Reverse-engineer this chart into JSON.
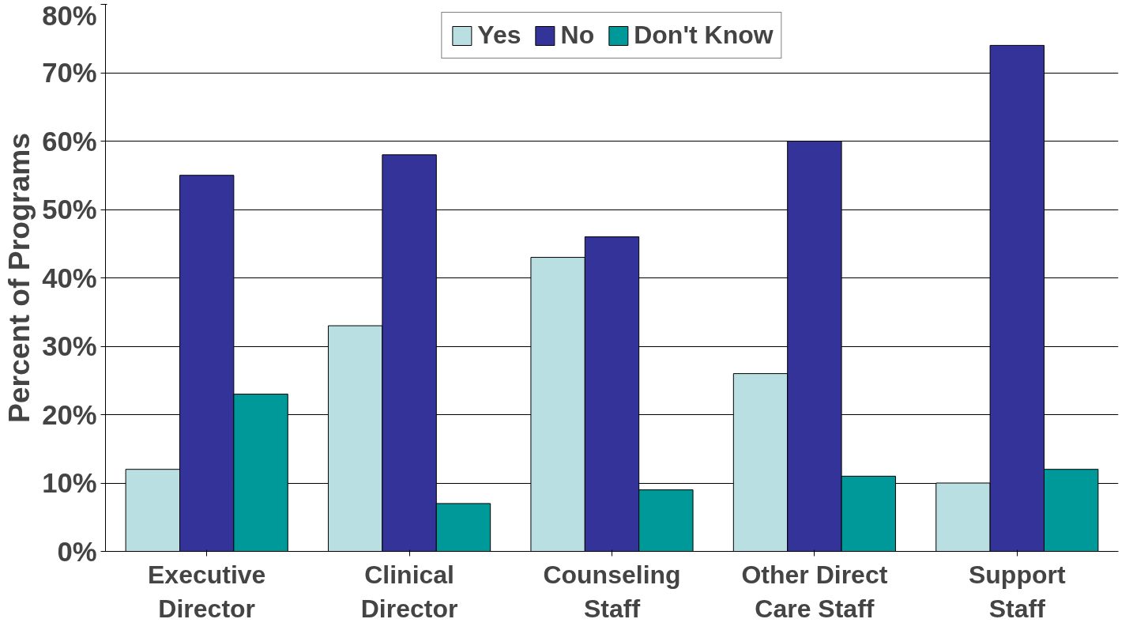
{
  "chart_data": {
    "type": "bar",
    "ylabel": "Percent of Programs",
    "categories": [
      "Executive\nDirector",
      "Clinical\nDirector",
      "Counseling\nStaff",
      "Other Direct\nCare Staff",
      "Support\nStaff"
    ],
    "series": [
      {
        "name": "Yes",
        "color": "#b9dfe3",
        "values": [
          12,
          33,
          43,
          26,
          10
        ]
      },
      {
        "name": "No",
        "color": "#333399",
        "values": [
          55,
          58,
          46,
          60,
          74
        ]
      },
      {
        "name": "Don't Know",
        "color": "#009999",
        "values": [
          23,
          7,
          9,
          11,
          12
        ]
      }
    ],
    "ylim": [
      0,
      80
    ],
    "yticks": [
      {
        "value": 0,
        "label": "0%"
      },
      {
        "value": 10,
        "label": "10%"
      },
      {
        "value": 20,
        "label": "20%"
      },
      {
        "value": 30,
        "label": "30%"
      },
      {
        "value": 40,
        "label": "40%"
      },
      {
        "value": 50,
        "label": "50%"
      },
      {
        "value": 60,
        "label": "60%"
      },
      {
        "value": 70,
        "label": "70%"
      },
      {
        "value": 80,
        "label": "80%"
      }
    ],
    "grid": "y",
    "legend": "top"
  }
}
